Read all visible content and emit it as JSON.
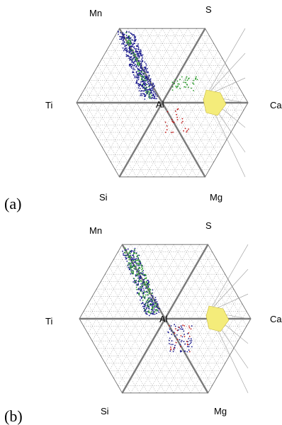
{
  "panels": [
    {
      "id": "a",
      "label": "(a)",
      "vertices": {
        "Mn": "Mn",
        "S": "S",
        "Ti": "Ti",
        "Al": "Al",
        "Ca": "Ca",
        "Si": "Si",
        "Mg": "Mg"
      },
      "clusters": [
        {
          "color": "#1a1a8c",
          "count": 520,
          "region": "Mn-S-Al",
          "spread": 0.55
        },
        {
          "color": "#2a9a2a",
          "count": 70,
          "region": "Mn-S-Al",
          "spread": 0.15
        },
        {
          "color": "#2a9a2a",
          "count": 40,
          "region": "Al-S-Ca",
          "spread": 0.2
        },
        {
          "color": "#c01818",
          "count": 25,
          "region": "Al-Ca-Mg",
          "spread": 0.12
        },
        {
          "color": "#f0e060",
          "count": 1,
          "region": "Al-S-Ca",
          "spread": 0.0
        }
      ]
    },
    {
      "id": "b",
      "label": "(b)",
      "vertices": {
        "Mn": "Mn",
        "S": "S",
        "Ti": "Ti",
        "Al": "Al",
        "Ca": "Ca",
        "Si": "Si",
        "Mg": "Mg"
      },
      "clusters": [
        {
          "color": "#1a1a8c",
          "count": 320,
          "region": "Mn-S-Al",
          "spread": 0.5
        },
        {
          "color": "#2a9a2a",
          "count": 180,
          "region": "Mn-S-Al",
          "spread": 0.45
        },
        {
          "color": "#1a1a8c",
          "count": 60,
          "region": "Al-Ca-Mg",
          "spread": 0.14
        },
        {
          "color": "#c01818",
          "count": 25,
          "region": "Al-Ca-Mg",
          "spread": 0.1
        },
        {
          "color": "#f0e060",
          "count": 1,
          "region": "Al-S-Ca",
          "spread": 0.0
        }
      ]
    }
  ]
}
